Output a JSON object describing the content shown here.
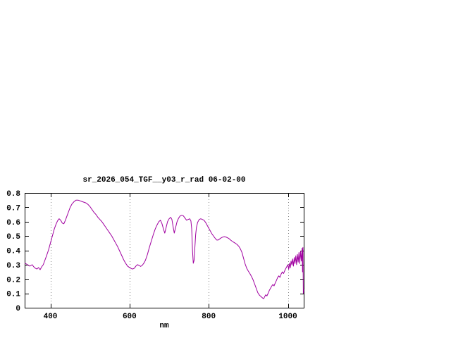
{
  "page": {
    "background": "#ffffff"
  },
  "chart_data": {
    "type": "line",
    "title": "sr_2026_054_TGF__y03_r_rad 06-02-00",
    "xlabel": "nm",
    "ylabel": "",
    "xlim": [
      335,
      1040
    ],
    "ylim": [
      0,
      0.8
    ],
    "xticks": [
      400,
      600,
      800,
      1000
    ],
    "yticks": [
      0,
      0.1,
      0.2,
      0.3,
      0.4,
      0.5,
      0.6,
      0.7,
      0.8
    ],
    "ytick_labels": [
      "0",
      "0.1",
      "0.2",
      "0.3",
      "0.4",
      "0.5",
      "0.6",
      "0.7",
      "0.8"
    ],
    "grid": {
      "vertical": true,
      "horizontal": false,
      "style": "dotted"
    },
    "legend": "none",
    "colors": {
      "line": "#a000a0",
      "axis": "#000000",
      "grid": "#808080",
      "text": "#000000",
      "background": "#ffffff"
    },
    "series": [
      {
        "name": "sr_2026_054_TGF__y03_r_rad 06-02-00",
        "points": [
          [
            336,
            0.31
          ],
          [
            342,
            0.3
          ],
          [
            348,
            0.29
          ],
          [
            354,
            0.3
          ],
          [
            358,
            0.285
          ],
          [
            362,
            0.275
          ],
          [
            366,
            0.27
          ],
          [
            370,
            0.28
          ],
          [
            374,
            0.265
          ],
          [
            378,
            0.285
          ],
          [
            382,
            0.3
          ],
          [
            386,
            0.33
          ],
          [
            390,
            0.36
          ],
          [
            395,
            0.4
          ],
          [
            400,
            0.45
          ],
          [
            405,
            0.5
          ],
          [
            410,
            0.55
          ],
          [
            414,
            0.58
          ],
          [
            418,
            0.605
          ],
          [
            422,
            0.62
          ],
          [
            426,
            0.61
          ],
          [
            430,
            0.59
          ],
          [
            434,
            0.585
          ],
          [
            438,
            0.61
          ],
          [
            442,
            0.64
          ],
          [
            446,
            0.67
          ],
          [
            450,
            0.7
          ],
          [
            455,
            0.725
          ],
          [
            460,
            0.74
          ],
          [
            465,
            0.75
          ],
          [
            470,
            0.75
          ],
          [
            475,
            0.745
          ],
          [
            480,
            0.74
          ],
          [
            485,
            0.735
          ],
          [
            490,
            0.73
          ],
          [
            495,
            0.72
          ],
          [
            500,
            0.705
          ],
          [
            505,
            0.685
          ],
          [
            510,
            0.665
          ],
          [
            515,
            0.65
          ],
          [
            520,
            0.63
          ],
          [
            525,
            0.615
          ],
          [
            530,
            0.6
          ],
          [
            535,
            0.58
          ],
          [
            540,
            0.56
          ],
          [
            545,
            0.54
          ],
          [
            550,
            0.52
          ],
          [
            555,
            0.5
          ],
          [
            560,
            0.475
          ],
          [
            565,
            0.45
          ],
          [
            570,
            0.425
          ],
          [
            575,
            0.395
          ],
          [
            580,
            0.365
          ],
          [
            585,
            0.335
          ],
          [
            590,
            0.31
          ],
          [
            595,
            0.29
          ],
          [
            600,
            0.28
          ],
          [
            605,
            0.272
          ],
          [
            608,
            0.27
          ],
          [
            612,
            0.275
          ],
          [
            616,
            0.29
          ],
          [
            620,
            0.3
          ],
          [
            624,
            0.295
          ],
          [
            628,
            0.288
          ],
          [
            632,
            0.295
          ],
          [
            636,
            0.31
          ],
          [
            640,
            0.33
          ],
          [
            645,
            0.37
          ],
          [
            650,
            0.42
          ],
          [
            655,
            0.465
          ],
          [
            660,
            0.51
          ],
          [
            665,
            0.55
          ],
          [
            670,
            0.58
          ],
          [
            674,
            0.6
          ],
          [
            678,
            0.61
          ],
          [
            682,
            0.585
          ],
          [
            686,
            0.545
          ],
          [
            689,
            0.52
          ],
          [
            692,
            0.555
          ],
          [
            696,
            0.6
          ],
          [
            700,
            0.62
          ],
          [
            704,
            0.63
          ],
          [
            707,
            0.615
          ],
          [
            710,
            0.565
          ],
          [
            713,
            0.52
          ],
          [
            716,
            0.555
          ],
          [
            720,
            0.6
          ],
          [
            724,
            0.625
          ],
          [
            728,
            0.64
          ],
          [
            732,
            0.645
          ],
          [
            736,
            0.64
          ],
          [
            740,
            0.625
          ],
          [
            744,
            0.61
          ],
          [
            748,
            0.615
          ],
          [
            752,
            0.62
          ],
          [
            755,
            0.605
          ],
          [
            757,
            0.55
          ],
          [
            759,
            0.4
          ],
          [
            761,
            0.31
          ],
          [
            763,
            0.33
          ],
          [
            765,
            0.42
          ],
          [
            767,
            0.51
          ],
          [
            769,
            0.56
          ],
          [
            772,
            0.595
          ],
          [
            776,
            0.615
          ],
          [
            780,
            0.62
          ],
          [
            784,
            0.615
          ],
          [
            788,
            0.61
          ],
          [
            792,
            0.595
          ],
          [
            796,
            0.575
          ],
          [
            800,
            0.555
          ],
          [
            804,
            0.535
          ],
          [
            808,
            0.515
          ],
          [
            812,
            0.5
          ],
          [
            816,
            0.485
          ],
          [
            820,
            0.472
          ],
          [
            824,
            0.472
          ],
          [
            828,
            0.48
          ],
          [
            832,
            0.488
          ],
          [
            836,
            0.493
          ],
          [
            840,
            0.495
          ],
          [
            844,
            0.492
          ],
          [
            848,
            0.487
          ],
          [
            852,
            0.48
          ],
          [
            856,
            0.47
          ],
          [
            860,
            0.462
          ],
          [
            864,
            0.455
          ],
          [
            868,
            0.448
          ],
          [
            872,
            0.44
          ],
          [
            876,
            0.428
          ],
          [
            880,
            0.41
          ],
          [
            884,
            0.385
          ],
          [
            888,
            0.345
          ],
          [
            892,
            0.305
          ],
          [
            896,
            0.275
          ],
          [
            900,
            0.255
          ],
          [
            904,
            0.238
          ],
          [
            908,
            0.218
          ],
          [
            912,
            0.195
          ],
          [
            916,
            0.165
          ],
          [
            920,
            0.135
          ],
          [
            924,
            0.105
          ],
          [
            928,
            0.088
          ],
          [
            932,
            0.078
          ],
          [
            936,
            0.068
          ],
          [
            939,
            0.063
          ],
          [
            941,
            0.075
          ],
          [
            944,
            0.09
          ],
          [
            947,
            0.082
          ],
          [
            950,
            0.1
          ],
          [
            953,
            0.12
          ],
          [
            956,
            0.135
          ],
          [
            959,
            0.15
          ],
          [
            962,
            0.162
          ],
          [
            965,
            0.152
          ],
          [
            968,
            0.172
          ],
          [
            971,
            0.19
          ],
          [
            974,
            0.21
          ],
          [
            977,
            0.222
          ],
          [
            980,
            0.212
          ],
          [
            983,
            0.235
          ],
          [
            986,
            0.25
          ],
          [
            989,
            0.238
          ],
          [
            992,
            0.258
          ],
          [
            995,
            0.275
          ],
          [
            998,
            0.29
          ],
          [
            1000,
            0.3
          ],
          [
            1002,
            0.268
          ],
          [
            1004,
            0.31
          ],
          [
            1006,
            0.278
          ],
          [
            1008,
            0.325
          ],
          [
            1010,
            0.298
          ],
          [
            1012,
            0.34
          ],
          [
            1014,
            0.29
          ],
          [
            1016,
            0.35
          ],
          [
            1018,
            0.308
          ],
          [
            1020,
            0.362
          ],
          [
            1022,
            0.3
          ],
          [
            1024,
            0.372
          ],
          [
            1026,
            0.318
          ],
          [
            1028,
            0.385
          ],
          [
            1030,
            0.308
          ],
          [
            1032,
            0.395
          ],
          [
            1034,
            0.325
          ],
          [
            1036,
            0.415
          ],
          [
            1037,
            0.25
          ],
          [
            1038,
            0.42
          ],
          [
            1039,
            0.1
          ],
          [
            1040,
            0.125
          ]
        ]
      }
    ]
  }
}
